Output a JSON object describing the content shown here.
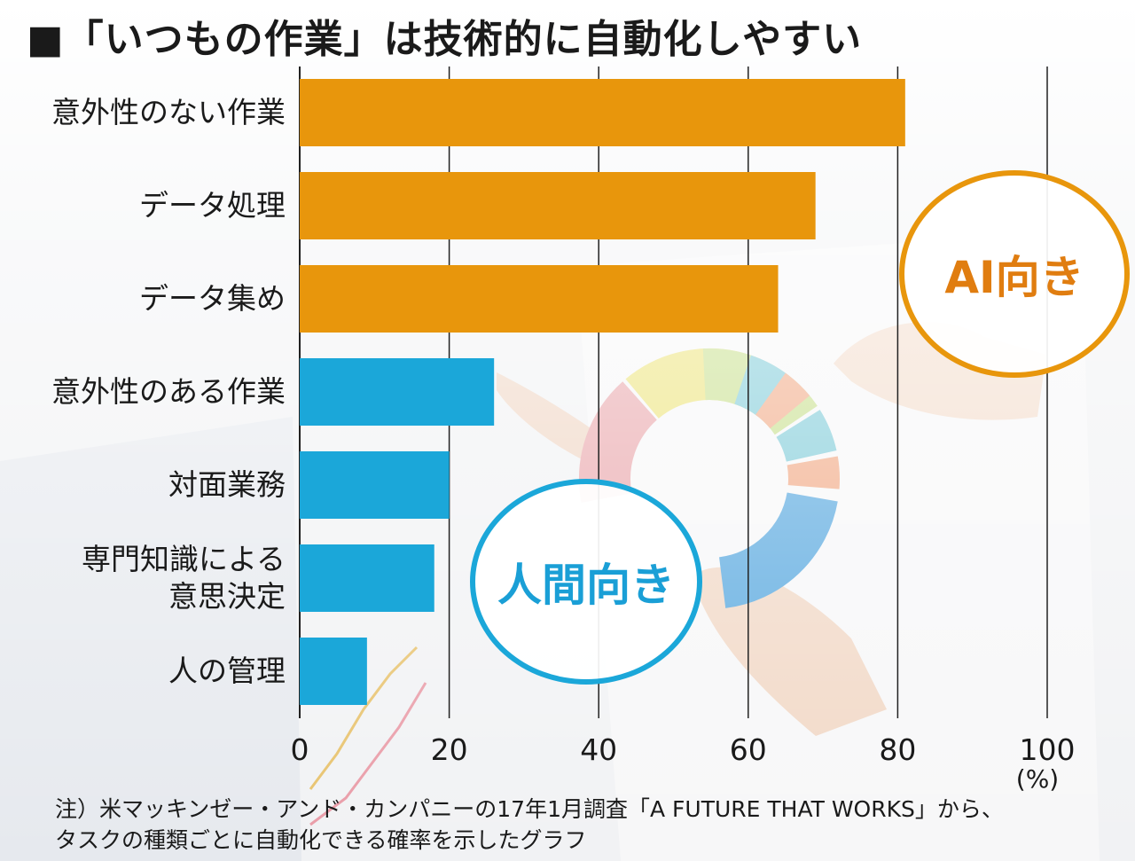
{
  "title": "■「いつもの作業」は技術的に自動化しやすい",
  "chart_data": {
    "type": "bar",
    "orientation": "horizontal",
    "categories": [
      "意外性のない作業",
      "データ処理",
      "データ集め",
      "意外性のある作業",
      "対面業務",
      "専門知識による意思決定",
      "人の管理"
    ],
    "category_lines": [
      [
        "意外性のない作業"
      ],
      [
        "データ処理"
      ],
      [
        "データ集め"
      ],
      [
        "意外性のある作業"
      ],
      [
        "対面業務"
      ],
      [
        "専門知識による",
        "意思決定"
      ],
      [
        "人の管理"
      ]
    ],
    "values": [
      81,
      69,
      64,
      26,
      20,
      18,
      9
    ],
    "groups": [
      "AI向き",
      "AI向き",
      "AI向き",
      "人間向き",
      "人間向き",
      "人間向き",
      "人間向き"
    ],
    "xlim": [
      0,
      100
    ],
    "xticks": [
      "0",
      "20",
      "40",
      "60",
      "80",
      "100"
    ],
    "xlabel": "(%)",
    "grid": true,
    "colors": {
      "AI向き": "#e8960c",
      "人間向き": "#1ba7d9"
    }
  },
  "labels": {
    "ai": "AI向き",
    "human": "人間向き"
  },
  "note": {
    "line1": "注）米マッキンゼー・アンド・カンパニーの17年1月調査「A FUTURE THAT WORKS」から、",
    "line2": "タスクの種類ごとに自動化できる確率を示したグラフ"
  }
}
